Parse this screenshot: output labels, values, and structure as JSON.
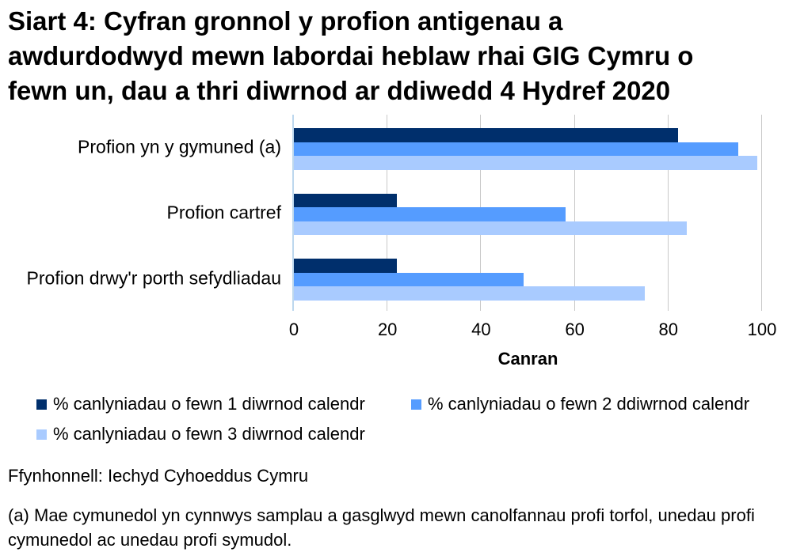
{
  "title": {
    "lines": [
      "Siart 4: Cyfran gronnol y profion antigenau a",
      "awdurdodwyd mewn labordai heblaw rhai GIG Cymru o",
      "fewn un, dau a thri diwrnod ar ddiwedd 4 Hydref 2020"
    ]
  },
  "chart_data": {
    "type": "bar",
    "orientation": "horizontal",
    "title": "Siart 4: Cyfran gronnol y profion antigenau a awdurdodwyd mewn labordai heblaw rhai GIG Cymru o fewn un, dau a thri diwrnod ar ddiwedd 4 Hydref 2020",
    "categories": [
      "Profion yn y gymuned (a)",
      "Profion cartref",
      "Profion drwy'r porth sefydliadau"
    ],
    "series": [
      {
        "name": "% canlyniadau o fewn 1 diwrnod calendr",
        "color": "#002F6C",
        "values": [
          82,
          22,
          22
        ]
      },
      {
        "name": "% canlyniadau o fewn 2 ddiwrnod calendr",
        "color": "#559CFF",
        "values": [
          95,
          58,
          49
        ]
      },
      {
        "name": "% canlyniadau o fewn 3 diwrnod calendr",
        "color": "#A9CBFF",
        "values": [
          99,
          84,
          75
        ]
      }
    ],
    "xlabel": "Canran",
    "xlim": [
      0,
      100
    ],
    "xticks": [
      0,
      20,
      40,
      60,
      80,
      100
    ],
    "grid": "vertical-gridlines",
    "legend_position": "below-chart",
    "gridline_color": "#C8C8C8",
    "axis_line_color": "#BDD7EE"
  },
  "source": "Ffynhonnell: Iechyd Cyhoeddus Cymru",
  "footnote": "(a) Mae cymunedol yn cynnwys samplau a gasglwyd mewn canolfannau profi torfol, unedau profi cymunedol ac unedau profi symudol."
}
